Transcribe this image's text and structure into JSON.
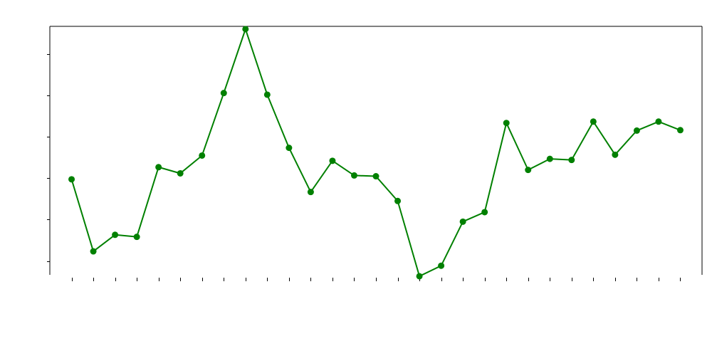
{
  "chart_data": {
    "type": "line",
    "title": "",
    "xlabel": "",
    "ylabel": "",
    "x": [
      1,
      2,
      3,
      4,
      5,
      6,
      7,
      8,
      9,
      10,
      11,
      12,
      13,
      14,
      15,
      16,
      17,
      18,
      19,
      20,
      21,
      22,
      23,
      24,
      25,
      26,
      27,
      28,
      29
    ],
    "y": [
      0.592,
      0.07,
      0.19,
      0.175,
      0.68,
      0.635,
      0.764,
      1.217,
      1.68,
      1.205,
      0.82,
      0.5,
      0.726,
      0.62,
      0.614,
      0.435,
      -0.11,
      -0.034,
      0.285,
      0.354,
      1.0,
      0.66,
      0.74,
      0.732,
      1.01,
      0.77,
      0.945,
      1.01,
      0.948
    ],
    "xlim": [
      0,
      30
    ],
    "ylim": [
      -0.1,
      1.7
    ],
    "yticks": [
      0,
      0.3,
      0.6,
      0.9,
      1.2,
      1.5,
      1.8
    ],
    "tick_labels_visible": false,
    "grid": false,
    "legend": "none",
    "marker": "circle",
    "colors": {
      "series": "#008000",
      "axis": "#000000"
    }
  }
}
